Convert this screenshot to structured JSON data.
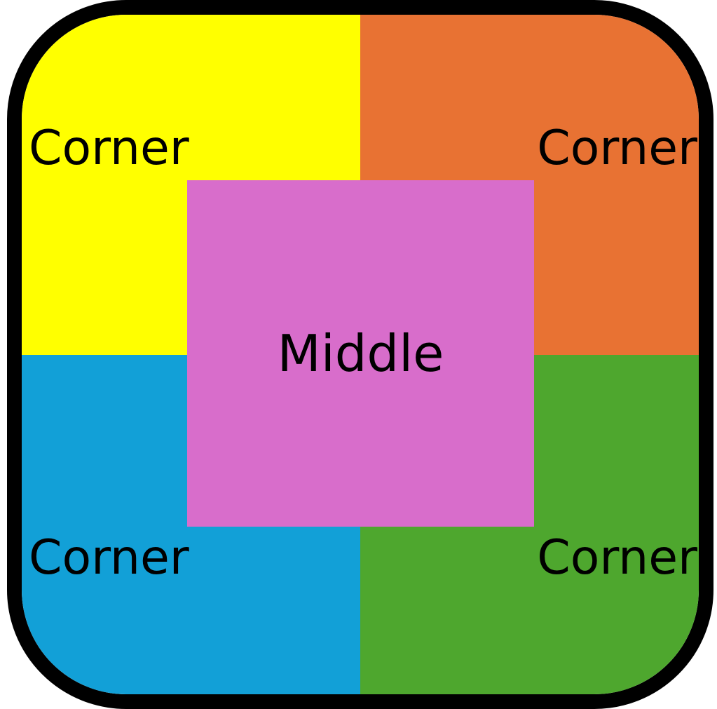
{
  "colors": {
    "top_left": "#FFFF00",
    "top_right": "#E87233",
    "bottom_left": "#12A0D7",
    "bottom_right": "#4EA72E",
    "middle": "#D86DCB",
    "border": "#000000"
  },
  "labels": {
    "top_left": "Corner",
    "top_right": "Corner",
    "bottom_left": "Corner",
    "bottom_right": "Corner",
    "middle": "Middle"
  }
}
